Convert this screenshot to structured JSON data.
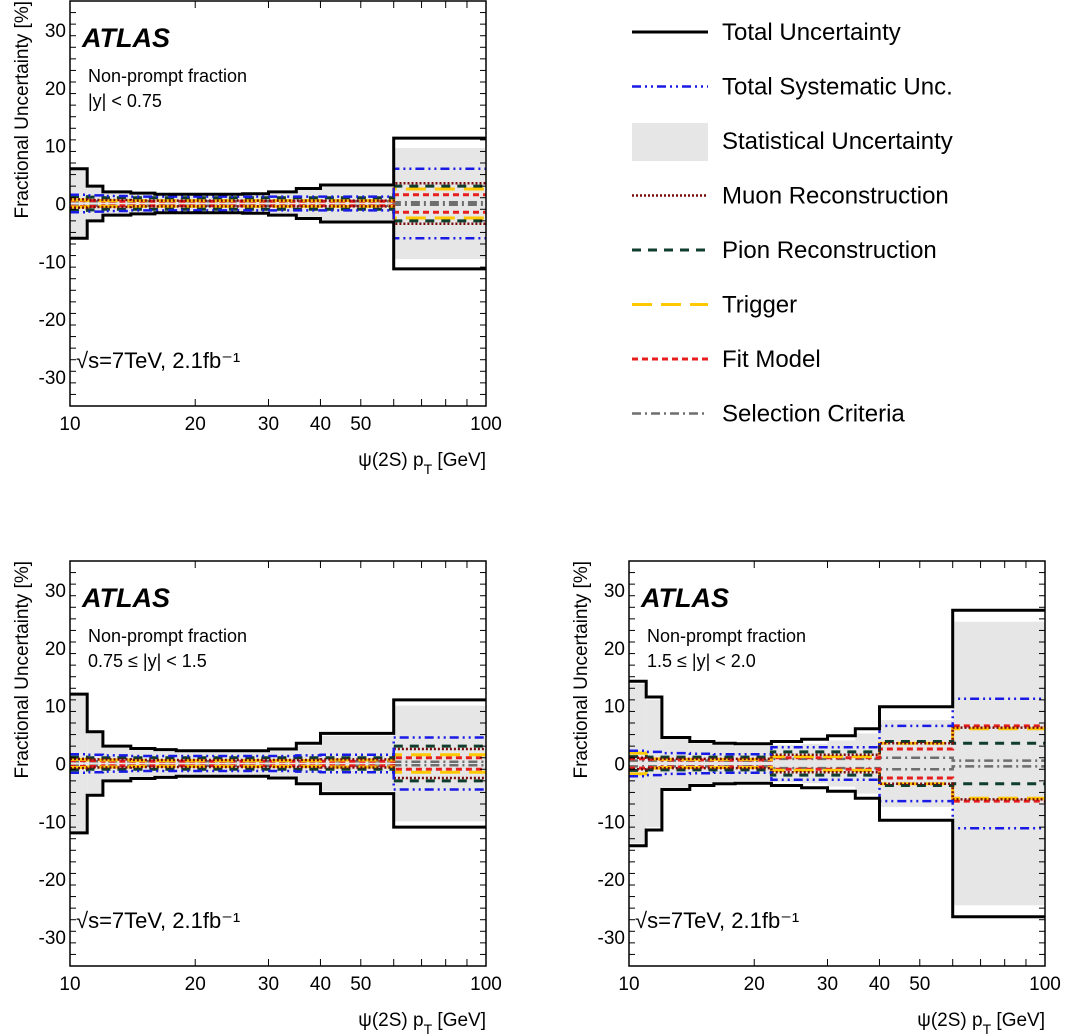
{
  "figure": {
    "atlas_label": "ATLAS",
    "energy_lumi": "√s=7TeV, 2.1fb⁻¹",
    "xlabel": "ψ(2S) p_T [GeV]",
    "ylabel": "Fractional Uncertainty [%]"
  },
  "legend": {
    "placement": "top-right",
    "entries": [
      {
        "key": "total",
        "label": "Total Uncertainty",
        "color": "#000000",
        "dash": "solid",
        "style": "line"
      },
      {
        "key": "syst",
        "label": "Total Systematic Unc.",
        "color": "#1a1ae6",
        "dash": "dash-dot-dot",
        "style": "line"
      },
      {
        "key": "stat",
        "label": "Statistical Uncertainty",
        "color": "#e6e6e6",
        "dash": "",
        "style": "box"
      },
      {
        "key": "muon",
        "label": "Muon Reconstruction",
        "color": "#7a0a0a",
        "dash": "dotted",
        "style": "line"
      },
      {
        "key": "pion",
        "label": "Pion Reconstruction",
        "color": "#0f3d2e",
        "dash": "dashed",
        "style": "line"
      },
      {
        "key": "trigger",
        "label": "Trigger",
        "color": "#ffc800",
        "dash": "long-dashed",
        "style": "line"
      },
      {
        "key": "fit",
        "label": "Fit Model",
        "color": "#e61e1e",
        "dash": "short-dashed",
        "style": "line"
      },
      {
        "key": "sel",
        "label": "Selection Criteria",
        "color": "#6e6e6e",
        "dash": "dash-dot",
        "style": "line"
      }
    ]
  },
  "chart_data": [
    {
      "type": "step",
      "subtitle": "Non-prompt fraction",
      "rapidity": "|y| < 0.75",
      "xscale": "log",
      "xlim": [
        10,
        100
      ],
      "ylim": [
        -35,
        35
      ],
      "xticks": [
        10,
        20,
        30,
        40,
        50,
        100
      ],
      "yticks": [
        -30,
        -20,
        -10,
        0,
        10,
        20,
        30
      ],
      "bin_edges": [
        10,
        11,
        12,
        14,
        16,
        18,
        22,
        26,
        30,
        35,
        40,
        60,
        100
      ],
      "series": {
        "total": [
          6.0,
          3.0,
          2.0,
          1.8,
          1.6,
          1.6,
          1.6,
          1.7,
          2.0,
          2.6,
          3.2,
          11.3
        ],
        "stat": [
          5.8,
          2.8,
          1.8,
          1.5,
          1.3,
          1.3,
          1.3,
          1.4,
          1.7,
          2.3,
          2.9,
          9.6
        ],
        "syst": [
          1.5,
          1.4,
          1.3,
          1.2,
          1.2,
          1.2,
          1.2,
          1.2,
          1.2,
          1.2,
          1.2,
          6.0
        ],
        "muon": [
          0.7,
          0.6,
          0.6,
          0.5,
          0.5,
          0.5,
          0.5,
          0.5,
          0.5,
          0.5,
          0.5,
          3.5
        ],
        "pion": [
          1.2,
          1.1,
          1.0,
          1.0,
          1.0,
          1.0,
          1.0,
          1.0,
          1.0,
          1.0,
          1.0,
          3.0
        ],
        "trigger": [
          0.6,
          0.5,
          0.5,
          0.5,
          0.5,
          0.5,
          0.5,
          0.5,
          0.5,
          0.5,
          0.5,
          2.5
        ],
        "fit": [
          0.5,
          0.5,
          0.4,
          0.4,
          0.4,
          0.4,
          0.4,
          0.4,
          0.4,
          0.4,
          0.4,
          1.5
        ],
        "sel": [
          0.4,
          0.4,
          0.4,
          0.4,
          0.4,
          0.4,
          0.4,
          0.4,
          0.4,
          0.4,
          0.4,
          0.2
        ]
      }
    },
    {
      "type": "step",
      "subtitle": "Non-prompt fraction",
      "rapidity": "0.75 ≤ |y| < 1.5",
      "xscale": "log",
      "xlim": [
        10,
        100
      ],
      "ylim": [
        -35,
        35
      ],
      "xticks": [
        10,
        20,
        30,
        40,
        50,
        100
      ],
      "yticks": [
        -30,
        -20,
        -10,
        0,
        10,
        20,
        30
      ],
      "bin_edges": [
        10,
        11,
        12,
        14,
        16,
        18,
        22,
        26,
        30,
        35,
        40,
        60,
        100
      ],
      "series": {
        "total": [
          12.0,
          5.5,
          3.0,
          2.6,
          2.4,
          2.2,
          2.2,
          2.2,
          2.5,
          3.5,
          5.2,
          11.0
        ],
        "stat": [
          11.8,
          5.2,
          2.7,
          2.3,
          2.1,
          1.9,
          1.9,
          1.9,
          2.2,
          3.1,
          4.8,
          10.0
        ],
        "syst": [
          1.6,
          1.5,
          1.4,
          1.3,
          1.3,
          1.3,
          1.3,
          1.3,
          1.3,
          1.4,
          1.5,
          4.5
        ],
        "muon": [
          0.8,
          0.7,
          0.7,
          0.6,
          0.6,
          0.6,
          0.6,
          0.6,
          0.6,
          0.6,
          0.7,
          2.5
        ],
        "pion": [
          1.1,
          1.0,
          1.0,
          1.0,
          1.0,
          1.0,
          1.0,
          1.0,
          1.0,
          1.0,
          1.0,
          3.0
        ],
        "trigger": [
          0.7,
          0.6,
          0.6,
          0.5,
          0.5,
          0.5,
          0.5,
          0.5,
          0.5,
          0.5,
          0.6,
          1.5
        ],
        "fit": [
          0.5,
          0.5,
          0.4,
          0.4,
          0.4,
          0.4,
          0.4,
          0.4,
          0.4,
          0.4,
          0.4,
          1.0
        ],
        "sel": [
          0.4,
          0.4,
          0.4,
          0.4,
          0.4,
          0.4,
          0.4,
          0.4,
          0.4,
          0.4,
          0.4,
          0.3
        ]
      }
    },
    {
      "type": "step",
      "subtitle": "Non-prompt fraction",
      "rapidity": "1.5 ≤ |y| < 2.0",
      "xscale": "log",
      "xlim": [
        10,
        100
      ],
      "ylim": [
        -35,
        35
      ],
      "xticks": [
        10,
        20,
        30,
        40,
        50,
        100
      ],
      "yticks": [
        -30,
        -20,
        -10,
        0,
        10,
        20,
        30
      ],
      "bin_edges": [
        10,
        11,
        12,
        14,
        16,
        18,
        22,
        26,
        30,
        35,
        40,
        60,
        100
      ],
      "series": {
        "total": [
          14.2,
          11.5,
          4.5,
          3.8,
          3.5,
          3.4,
          3.8,
          4.2,
          4.8,
          6.0,
          9.8,
          26.5
        ],
        "stat": [
          13.8,
          11.0,
          4.2,
          3.5,
          3.2,
          3.0,
          3.2,
          3.4,
          4.0,
          5.2,
          7.5,
          24.5
        ],
        "syst": [
          2.2,
          2.0,
          1.8,
          1.7,
          1.6,
          1.6,
          2.8,
          2.8,
          2.8,
          2.8,
          6.5,
          11.2
        ],
        "muon": [
          1.0,
          0.8,
          0.8,
          0.8,
          0.8,
          0.8,
          1.5,
          1.5,
          1.5,
          1.5,
          3.5,
          6.2
        ],
        "pion": [
          1.2,
          1.1,
          1.1,
          1.1,
          1.1,
          1.1,
          2.0,
          2.0,
          2.0,
          2.0,
          3.8,
          3.5
        ],
        "trigger": [
          1.8,
          0.8,
          0.7,
          0.7,
          0.7,
          0.7,
          1.2,
          1.2,
          1.2,
          1.2,
          3.5,
          6.0
        ],
        "fit": [
          0.8,
          0.7,
          0.6,
          0.6,
          0.6,
          0.6,
          1.0,
          1.0,
          1.0,
          1.0,
          2.5,
          6.5
        ],
        "sel": [
          0.5,
          0.5,
          0.5,
          0.5,
          0.5,
          0.5,
          0.8,
          0.8,
          0.8,
          0.8,
          1.0,
          0.5
        ]
      }
    }
  ]
}
